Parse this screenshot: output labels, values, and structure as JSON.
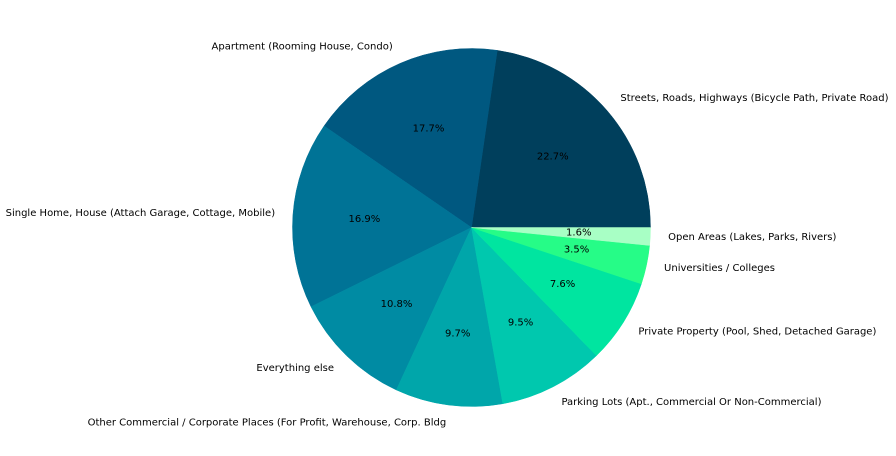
{
  "chart_data": {
    "type": "pie",
    "title": "",
    "start_angle_deg": 0,
    "direction": "counterclockwise",
    "slices": [
      {
        "label": "Streets, Roads, Highways (Bicycle Path, Private Road)",
        "value": 22.7,
        "pct_label": "22.7%",
        "color": "#003f5c"
      },
      {
        "label": "Apartment (Rooming House, Condo)",
        "value": 17.7,
        "pct_label": "17.7%",
        "color": "#005880"
      },
      {
        "label": "Single Home, House (Attach Garage, Cottage, Mobile)",
        "value": 16.9,
        "pct_label": "16.9%",
        "color": "#007396"
      },
      {
        "label": "Everything else",
        "value": 10.8,
        "pct_label": "10.8%",
        "color": "#008ba3"
      },
      {
        "label": "Other Commercial / Corporate Places (For Profit, Warehouse, Corp. Bldg",
        "value": 9.7,
        "pct_label": "9.7%",
        "color": "#00a6aa"
      },
      {
        "label": "Parking Lots (Apt., Commercial Or Non-Commercial)",
        "value": 9.5,
        "pct_label": "9.5%",
        "color": "#00c8ae"
      },
      {
        "label": "Private Property (Pool, Shed, Detached Garage)",
        "value": 7.6,
        "pct_label": "7.6%",
        "color": "#00e5a0"
      },
      {
        "label": "Universities / Colleges",
        "value": 3.5,
        "pct_label": "3.5%",
        "color": "#26fc87"
      },
      {
        "label": "Open Areas (Lakes, Parks, Rivers)",
        "value": 1.6,
        "pct_label": "1.6%",
        "color": "#a8ffc5"
      }
    ]
  }
}
